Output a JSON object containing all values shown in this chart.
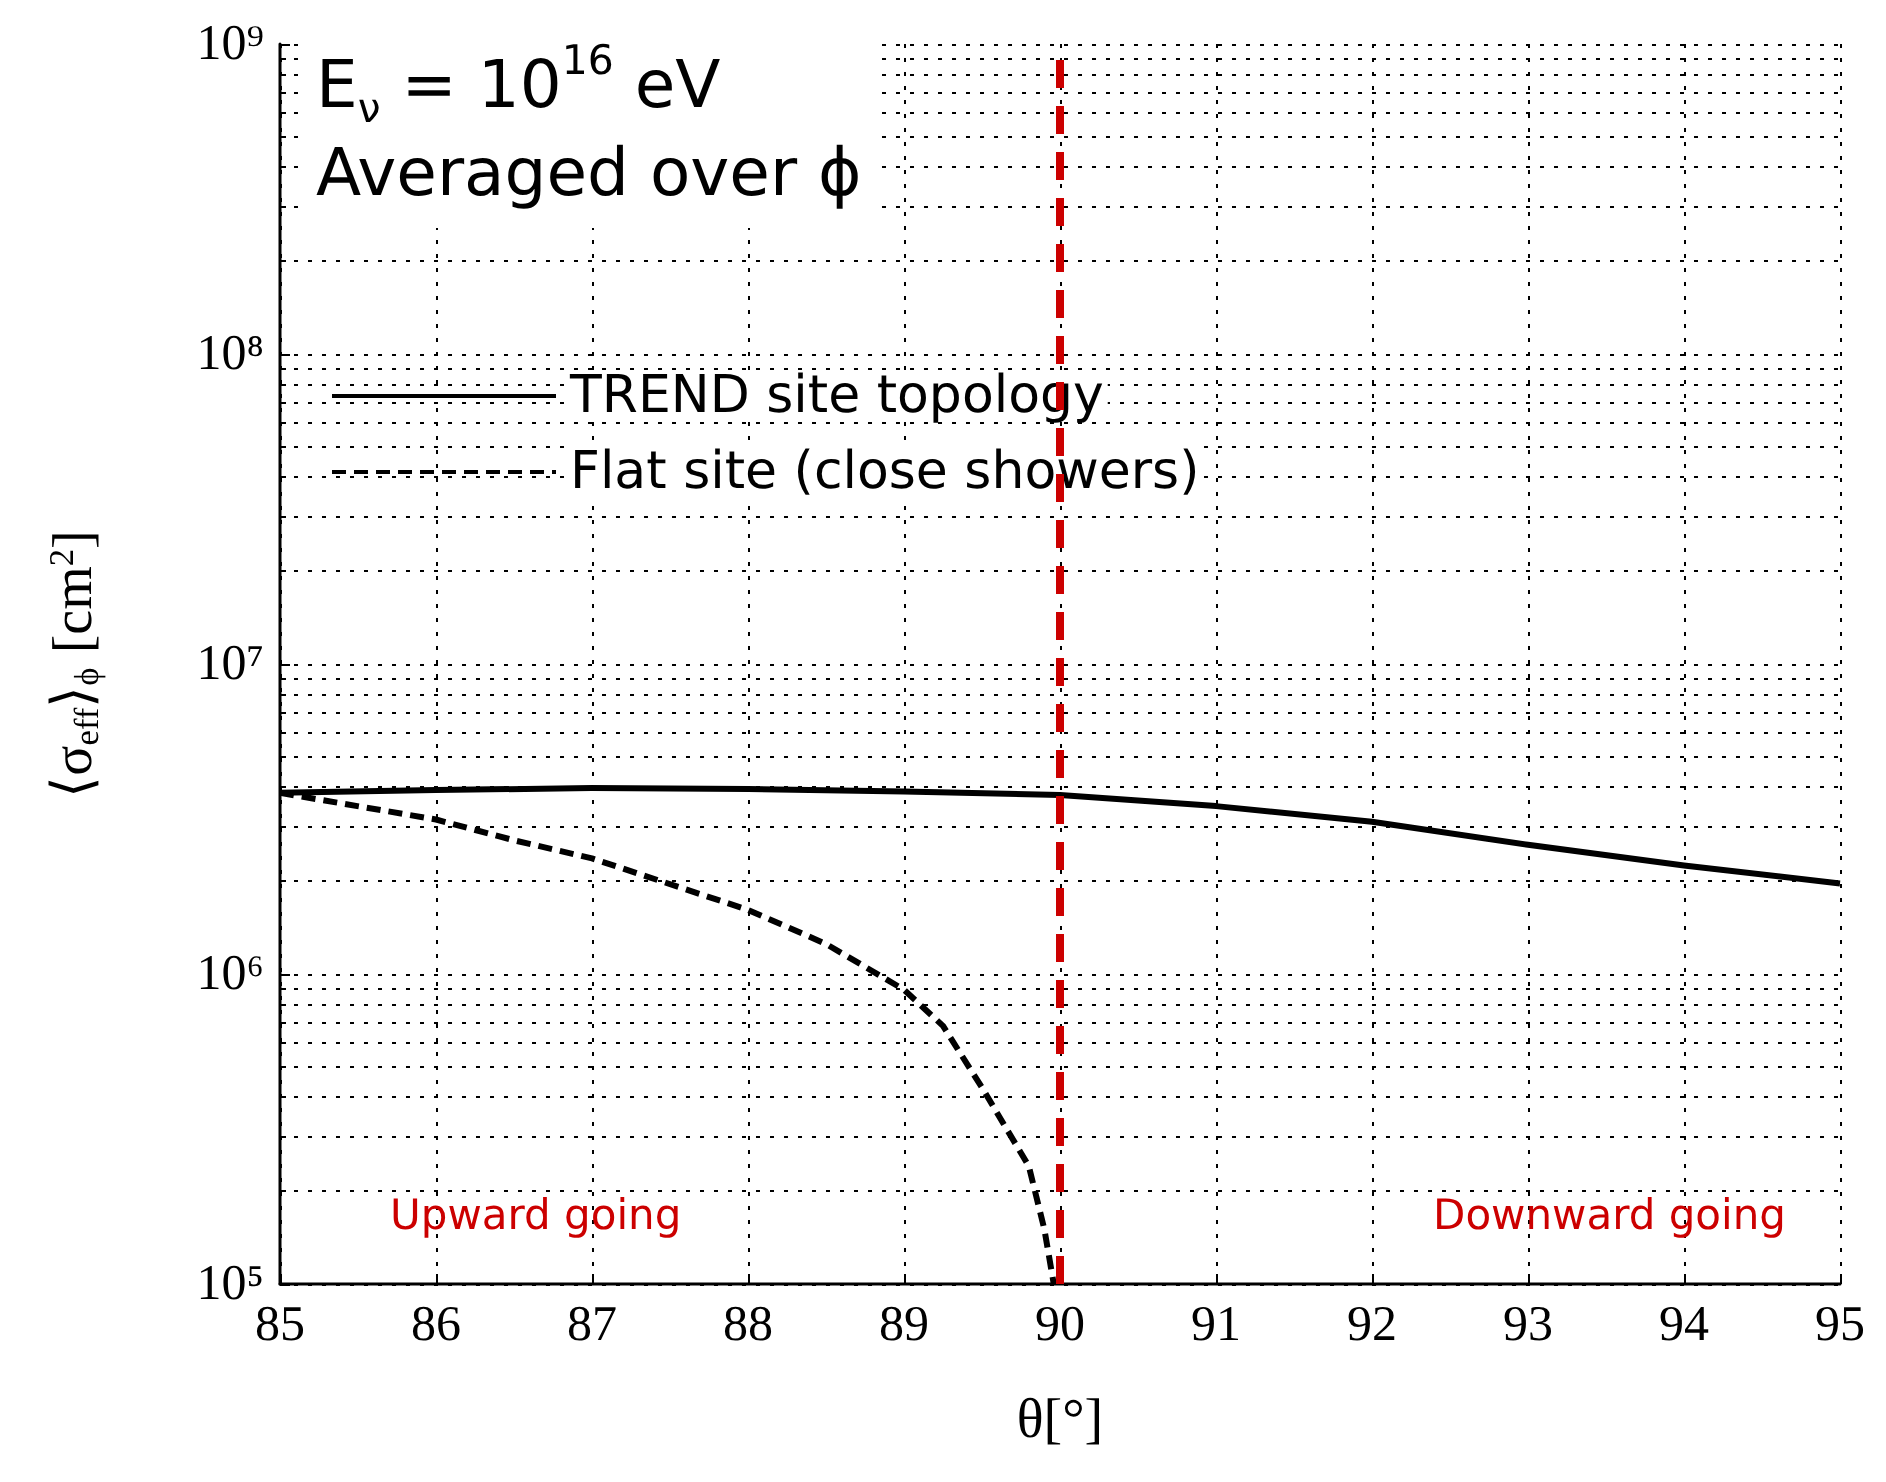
{
  "chart_data": {
    "type": "line",
    "title": "E$_{ν}$ = 10$^{16}$ eV",
    "subtitle": "Averaged over ϕ",
    "xlabel": "θ[°]",
    "ylabel": "⟨σ$_{eff}$⟩$_{ϕ}$ [cm$^{2}$]",
    "series": [
      {
        "name": "TREND site topology",
        "color": "#000000",
        "line_style": "solid",
        "x": [
          85,
          86,
          87,
          88,
          89,
          90,
          91,
          92,
          93,
          94,
          95
        ],
        "values": [
          3840000,
          3920000,
          3980000,
          3950000,
          3880000,
          3780000,
          3480000,
          3100000,
          2610000,
          2240000,
          1960000
        ]
      },
      {
        "name": "Flat site (close showers)",
        "color": "#000000",
        "line_style": "dashed",
        "x": [
          85,
          86,
          86.5,
          87,
          88,
          88.5,
          89,
          89.25,
          89.5,
          89.8,
          89.9,
          89.96
        ],
        "values": [
          3840000,
          3150000,
          2700000,
          2360000,
          1610000,
          1250000,
          890000,
          680000,
          430000,
          240000,
          150000,
          100000
        ]
      }
    ],
    "xlim": [
      85,
      95
    ],
    "xticks": [
      85,
      86,
      87,
      88,
      89,
      90,
      91,
      92,
      93,
      94,
      95
    ],
    "ylim": [
      100000,
      1000000000
    ],
    "log": "y",
    "yticks": [
      {
        "value": 100000,
        "label": "10⁵"
      },
      {
        "value": 1000000,
        "label": "10⁶"
      },
      {
        "value": 10000000,
        "label": "10⁷"
      },
      {
        "value": 100000000,
        "label": "10⁸"
      },
      {
        "value": 1000000000,
        "label": "10⁹"
      }
    ],
    "ref_lines": [
      {
        "axis": "x",
        "value": 90,
        "color": "#cc0000",
        "line_style": "dashed"
      }
    ],
    "annotations": [
      "Upward going",
      "Downward going"
    ],
    "grid": true,
    "legend": "top left",
    "marker": "none"
  }
}
